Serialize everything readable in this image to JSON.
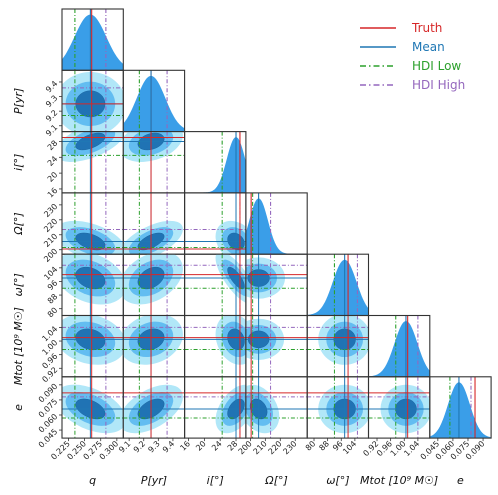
{
  "chart_data": {
    "type": "corner",
    "parameters": [
      {
        "key": "q",
        "label": "q",
        "truth": 0.261,
        "mean": 0.259,
        "hdi_low": 0.235,
        "hdi_high": 0.283,
        "ticks": [
          "0.225",
          "0.250",
          "0.275",
          "0.300"
        ],
        "tick_values": [
          0.225,
          0.25,
          0.275,
          0.3
        ],
        "range": [
          0.215,
          0.31
        ]
      },
      {
        "key": "P",
        "label": "P[yr]",
        "truth": 9.25,
        "mean": 9.25,
        "hdi_low": 9.17,
        "hdi_high": 9.36,
        "ticks": [
          "9.1",
          "9.2",
          "9.3",
          "9.4"
        ],
        "tick_values": [
          9.1,
          9.2,
          9.3,
          9.4
        ],
        "range": [
          9.06,
          9.48
        ]
      },
      {
        "key": "i",
        "label": "i[°]",
        "truth": 29.0,
        "mean": 28.0,
        "hdi_low": 24.5,
        "hdi_high": 29.0,
        "ticks": [
          "16",
          "20",
          "24",
          "28"
        ],
        "tick_values": [
          16,
          20,
          24,
          28
        ],
        "range": [
          15,
          30.5
        ]
      },
      {
        "key": "Omega",
        "label": "Ω[°]",
        "truth": 200.5,
        "mean": 205.5,
        "hdi_low": 201.5,
        "hdi_high": 213.5,
        "ticks": [
          "200",
          "210",
          "220",
          "230"
        ],
        "tick_values": [
          200,
          210,
          220,
          230
        ],
        "range": [
          197,
          238
        ]
      },
      {
        "key": "omega",
        "label": "ω[°]",
        "truth": 100.0,
        "mean": 98.0,
        "hdi_low": 92.0,
        "hdi_high": 105.5,
        "ticks": [
          "80",
          "88",
          "96",
          "104"
        ],
        "tick_values": [
          80,
          88,
          96,
          104
        ],
        "range": [
          76,
          112
        ]
      },
      {
        "key": "Mtot",
        "label": "Mtot [10⁹ M☉]",
        "truth": 1.01,
        "mean": 1.005,
        "hdi_low": 0.975,
        "hdi_high": 1.04,
        "ticks": [
          "0.92",
          "0.96",
          "1.00",
          "1.04"
        ],
        "tick_values": [
          0.92,
          0.96,
          1.0,
          1.04
        ],
        "range": [
          0.895,
          1.075
        ]
      },
      {
        "key": "e",
        "label": "e",
        "truth": 0.082,
        "mean": 0.066,
        "hdi_low": 0.057,
        "hdi_high": 0.078,
        "ticks": [
          "0.045",
          "0.060",
          "0.075",
          "0.090"
        ],
        "tick_values": [
          0.045,
          0.06,
          0.075,
          0.09
        ],
        "range": [
          0.037,
          0.098
        ]
      }
    ],
    "correlations": [
      [
        0,
        2,
        0.55
      ],
      [
        0,
        3,
        -0.45
      ],
      [
        0,
        4,
        -0.3
      ],
      [
        0,
        6,
        -0.45
      ],
      [
        0,
        5,
        -0.2
      ],
      [
        1,
        2,
        0.3
      ],
      [
        1,
        3,
        0.6
      ],
      [
        1,
        4,
        0.35
      ],
      [
        1,
        5,
        0.2
      ],
      [
        1,
        6,
        0.5
      ],
      [
        1,
        7,
        0.45
      ],
      [
        2,
        3,
        -0.25
      ],
      [
        2,
        4,
        -0.75
      ],
      [
        2,
        5,
        -0.2
      ],
      [
        2,
        6,
        0.45
      ],
      [
        3,
        6,
        -0.3
      ],
      [
        3,
        7,
        0.25
      ]
    ],
    "legend": {
      "placement": "top-right",
      "entries": [
        {
          "name": "Truth",
          "color": "#d62728",
          "style": "solid"
        },
        {
          "name": "Mean",
          "color": "#1f77b4",
          "style": "solid"
        },
        {
          "name": "HDI Low",
          "color": "#2ca02c",
          "style": "dashdot"
        },
        {
          "name": "HDI High",
          "color": "#9467bd",
          "style": "dashdot"
        }
      ]
    },
    "colors": {
      "contour_outer": "#a8e4f7",
      "contour_mid": "#5bb8f0",
      "contour_inner": "#1c6fb0",
      "hist": "#3a9ee8"
    }
  }
}
